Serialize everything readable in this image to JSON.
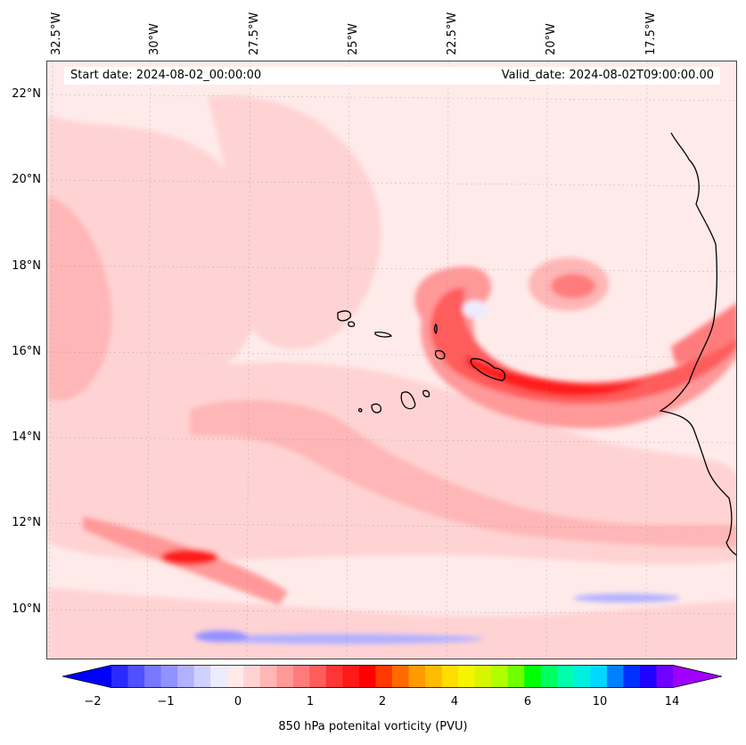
{
  "header": {
    "start_date": "Start date: 2024-08-02_00:00:00",
    "valid_date": "Valid_date: 2024-08-02T09:00:00.00"
  },
  "map": {
    "longitude_labels": [
      "32.5°W",
      "30°W",
      "27.5°W",
      "25°W",
      "22.5°W",
      "20°W",
      "17.5°W"
    ],
    "latitude_labels": [
      "22°N",
      "20°N",
      "18°N",
      "16°N",
      "14°N",
      "12°N",
      "10°N"
    ],
    "variable": "850 hPa potential vorticity",
    "extent": {
      "lon_min": -33,
      "lon_max": -15.5,
      "lat_min": 8.9,
      "lat_max": 22.8
    }
  },
  "colorbar": {
    "label": "850 hPa potenital vorticity (PVU)",
    "tick_labels": [
      "−2",
      "−1",
      "0",
      "1",
      "2",
      "4",
      "6",
      "10",
      "14"
    ],
    "colors": [
      "#0000ff",
      "#2a2aff",
      "#5050ff",
      "#7777ff",
      "#9292ff",
      "#b1b1ff",
      "#d0d0ff",
      "#ececff",
      "#ffeaea",
      "#ffd3d3",
      "#ffb6b6",
      "#ff9999",
      "#ff7b7b",
      "#ff5c5c",
      "#ff3636",
      "#ff1a1a",
      "#ff0000",
      "#ff3a00",
      "#ff6a00",
      "#ff9a00",
      "#ffbb00",
      "#ffdd00",
      "#f5f500",
      "#d7f500",
      "#b0ff00",
      "#70ff00",
      "#00ff00",
      "#00ff60",
      "#00ffaa",
      "#00f0e0",
      "#00d8ff",
      "#0080ff",
      "#0030ff",
      "#2000ff",
      "#7000ff",
      "#a000ff"
    ]
  }
}
